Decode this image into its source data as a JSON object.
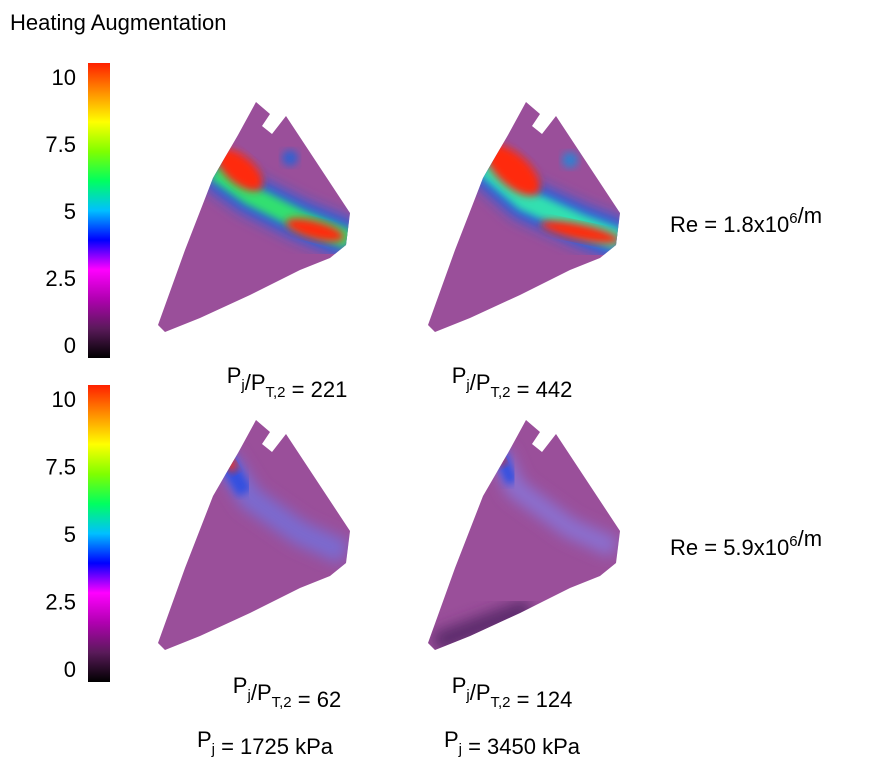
{
  "title": "Heating Augmentation",
  "colorbar": {
    "range": [
      -0.4,
      10.6
    ],
    "ticks": [
      10,
      7.5,
      5,
      2.5,
      0
    ],
    "colors": [
      "#000000",
      "#5a1a5a",
      "#b000b0",
      "#ff00ff",
      "#0000ff",
      "#00c0ff",
      "#00ff60",
      "#80ff00",
      "#ffff00",
      "#ff9000",
      "#ff2000"
    ]
  },
  "rows": [
    {
      "re": [
        {
          "text": "Re = 1.8x10"
        },
        {
          "sup": "6"
        },
        {
          "text": "/m"
        }
      ],
      "panels": [
        [
          {
            "text": "P"
          },
          {
            "sub": "j"
          },
          {
            "text": "/P"
          },
          {
            "sub": "T,2"
          },
          {
            "text": " = 221"
          }
        ],
        [
          {
            "text": "P"
          },
          {
            "sub": "j"
          },
          {
            "text": "/P"
          },
          {
            "sub": "T,2"
          },
          {
            "text": " = 442"
          }
        ]
      ]
    },
    {
      "re": [
        {
          "text": "Re = 5.9x10"
        },
        {
          "sup": "6"
        },
        {
          "text": "/m"
        }
      ],
      "panels": [
        [
          {
            "text": "P"
          },
          {
            "sub": "j"
          },
          {
            "text": "/P"
          },
          {
            "sub": "T,2"
          },
          {
            "text": " = 62"
          }
        ],
        [
          {
            "text": "P"
          },
          {
            "sub": "j"
          },
          {
            "text": "/P"
          },
          {
            "sub": "T,2"
          },
          {
            "text": " = 124"
          }
        ]
      ]
    }
  ],
  "pressures": [
    [
      {
        "text": "P"
      },
      {
        "sub": "j"
      },
      {
        "text": " = 1725 kPa"
      }
    ],
    [
      {
        "text": "P"
      },
      {
        "sub": "j"
      },
      {
        "text": " = 3450 kPa"
      }
    ]
  ]
}
